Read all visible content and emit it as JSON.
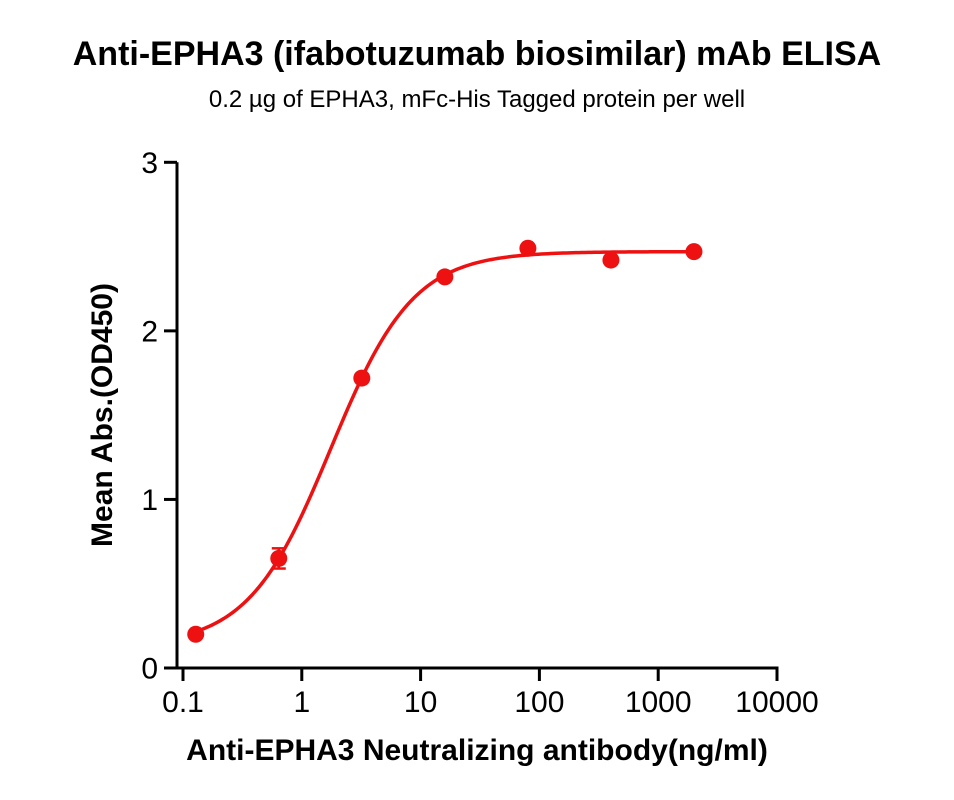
{
  "chart_data": {
    "type": "scatter",
    "title": "Anti-EPHA3 (ifabotuzumab biosimilar) mAb ELISA",
    "subtitle": "0.2 µg of EPHA3, mFc-His Tagged protein per well",
    "xlabel": "Anti-EPHA3 Neutralizing antibody(ng/ml)",
    "ylabel": "Mean Abs.(OD450)",
    "xscale": "log10",
    "xlim": [
      0.1,
      10000
    ],
    "ylim": [
      0,
      3
    ],
    "x_ticks": [
      0.1,
      1,
      10,
      100,
      1000,
      10000
    ],
    "x_tick_labels": [
      "0.1",
      "1",
      "10",
      "100",
      "1000",
      "10000"
    ],
    "y_ticks": [
      0,
      1,
      2,
      3
    ],
    "y_tick_labels": [
      "0",
      "1",
      "2",
      "3"
    ],
    "grid": false,
    "legend": "none",
    "background_color": "#FFFFFF",
    "axis_color": "#000000",
    "series": [
      {
        "name": "Anti-EPHA3 neutralizing antibody",
        "marker": "circle",
        "color": "#EE1111",
        "x": [
          0.128,
          0.64,
          3.2,
          16,
          80,
          400,
          2000
        ],
        "y": [
          0.2,
          0.65,
          1.72,
          2.32,
          2.49,
          2.42,
          2.47
        ],
        "y_err": [
          0,
          0.06,
          0,
          0,
          0,
          0,
          0
        ]
      }
    ],
    "fit_curve": {
      "model": "4PL",
      "bottom": 0.13,
      "top": 2.47,
      "ec50": 1.75,
      "hill": 1.25,
      "x_start": 0.128,
      "x_end": 2000,
      "color": "#EE1111"
    }
  }
}
